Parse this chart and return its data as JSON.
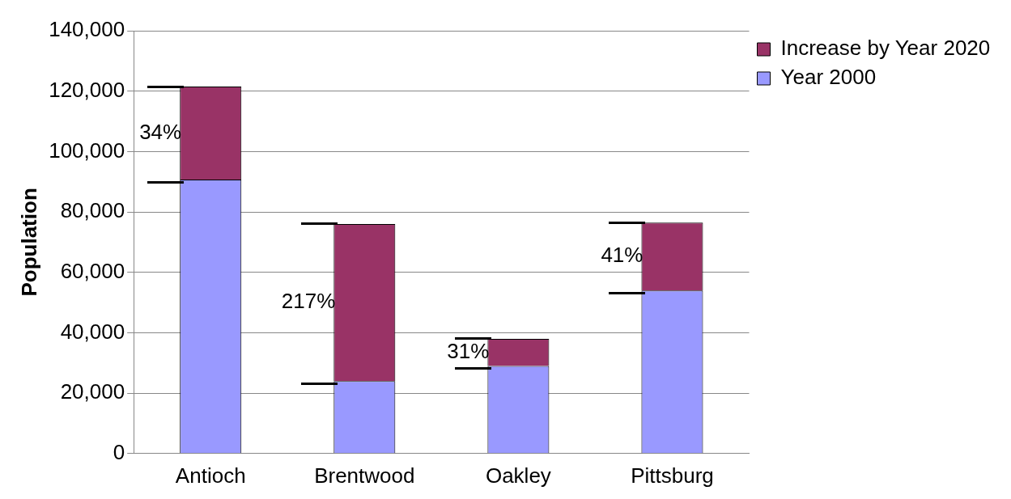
{
  "chart_data": {
    "type": "bar",
    "stacked": true,
    "ylabel": "Population",
    "categories": [
      "Antioch",
      "Brentwood",
      "Oakley",
      "Pittsburg"
    ],
    "series": [
      {
        "name": "Year 2000",
        "color": "#9999ff",
        "values": [
          90700,
          24000,
          29000,
          54000
        ]
      },
      {
        "name": "Increase by Year 2020",
        "color": "#993366",
        "values": [
          30800,
          52000,
          9000,
          22500
        ]
      }
    ],
    "ylim": [
      0,
      140000
    ],
    "yticks": [
      {
        "value": 0,
        "label": "0"
      },
      {
        "value": 20000,
        "label": "20,000"
      },
      {
        "value": 40000,
        "label": "40,000"
      },
      {
        "value": 60000,
        "label": "60,000"
      },
      {
        "value": 80000,
        "label": "80,000"
      },
      {
        "value": 100000,
        "label": "100,000"
      },
      {
        "value": 120000,
        "label": "120,000"
      },
      {
        "value": 140000,
        "label": "140,000"
      }
    ],
    "grid": "y",
    "legend": "top right",
    "annotations": [
      "34%",
      "217%",
      "31%",
      "41%"
    ]
  }
}
